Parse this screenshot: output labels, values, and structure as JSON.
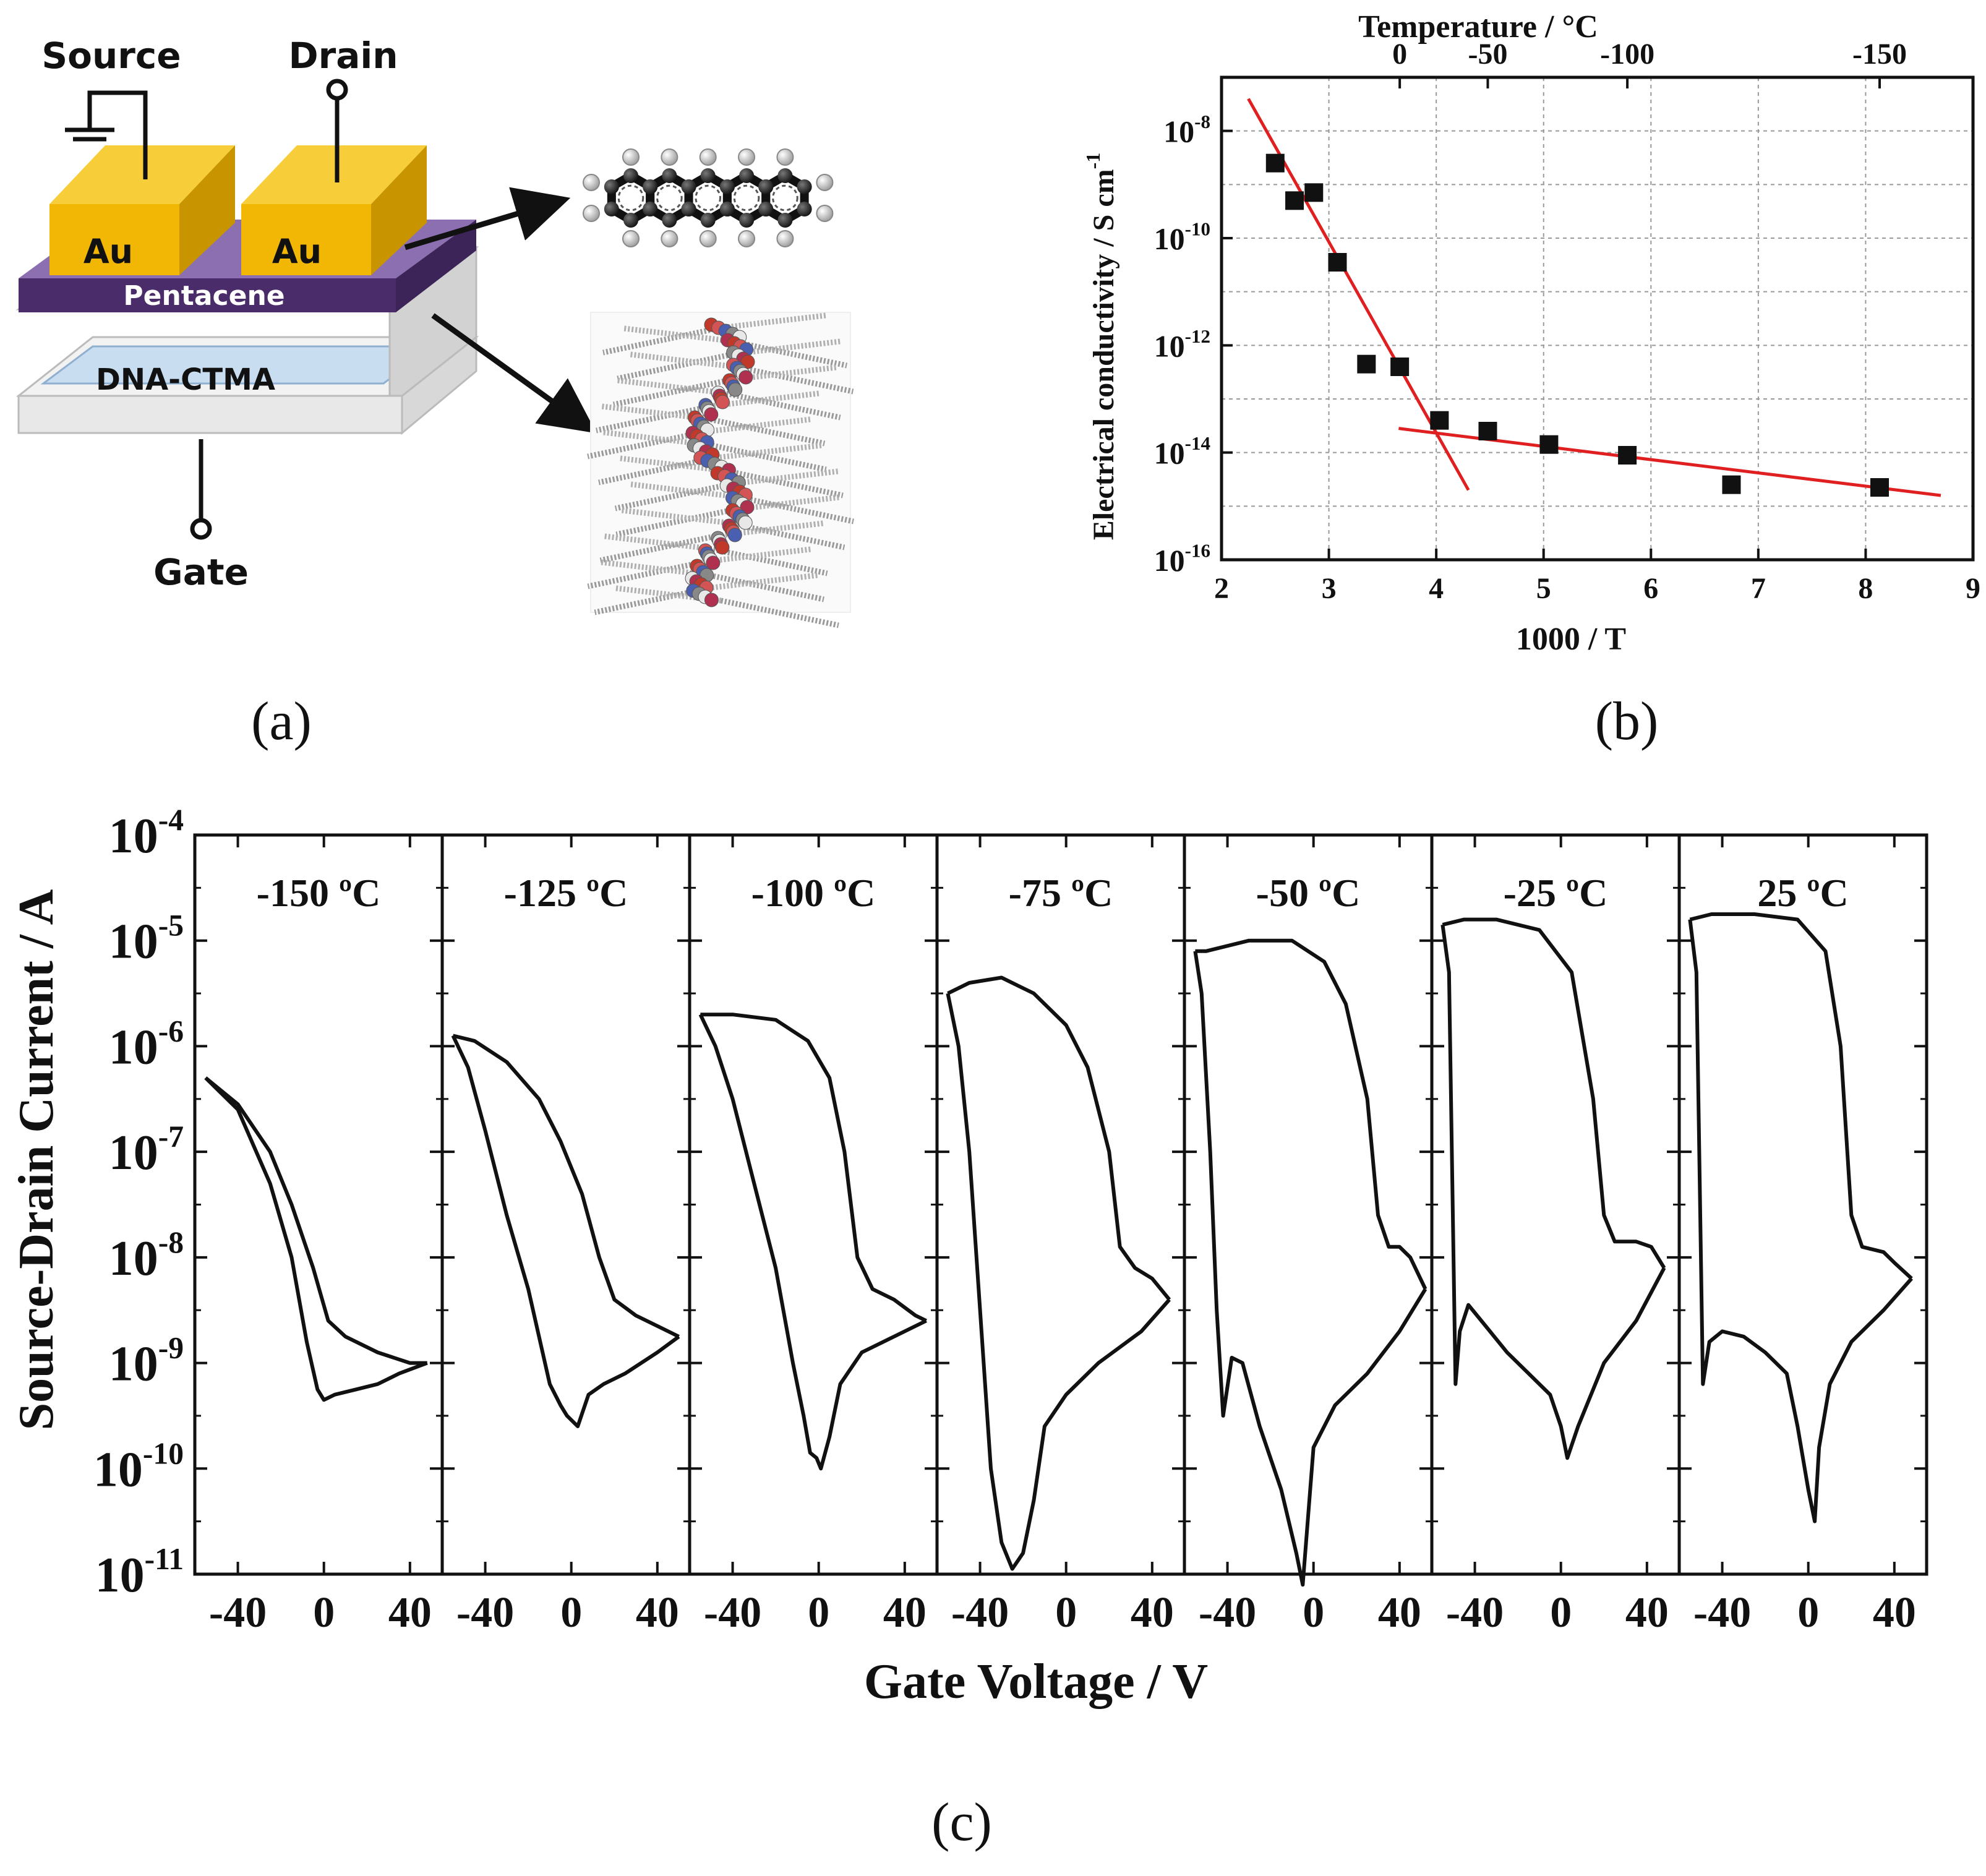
{
  "panel_a": {
    "caption": "(a)",
    "labels": {
      "source": "Source",
      "drain": "Drain",
      "gate": "Gate",
      "au_left": "Au",
      "au_right": "Au",
      "pentacene": "Pentacene",
      "dna": "DNA-CTMA"
    },
    "colors": {
      "gold": "#f2b705",
      "purple": "#5a3d7a",
      "dna_layer": "#c9ddf0",
      "substrate": "#e6e6e6"
    }
  },
  "chart_data": [
    {
      "id": "b",
      "type": "scatter",
      "caption": "(b)",
      "title": "",
      "xlabel": "1000 / T",
      "ylabel": "Electrical conductivity / S cm",
      "ylabel_sup": "-1",
      "xlabel_top": "Temperature / °C",
      "xlim": [
        2,
        9
      ],
      "ylog": true,
      "ylim_exp": [
        -16,
        -7
      ],
      "x_ticks": [
        "2",
        "3",
        "4",
        "5",
        "6",
        "7",
        "8",
        "9"
      ],
      "y_ticks": [
        {
          "exp": -8,
          "base": "10",
          "sup": "-8"
        },
        {
          "exp": -10,
          "base": "10",
          "sup": "-10"
        },
        {
          "exp": -12,
          "base": "10",
          "sup": "-12"
        },
        {
          "exp": -14,
          "base": "10",
          "sup": "-14"
        },
        {
          "exp": -16,
          "base": "10",
          "sup": "-16"
        }
      ],
      "top_ticks": [
        {
          "label": "0",
          "x": 3.66
        },
        {
          "label": "-50",
          "x": 4.48
        },
        {
          "label": "-100",
          "x": 5.78
        },
        {
          "label": "-150",
          "x": 8.13
        }
      ],
      "points": [
        {
          "x": 2.5,
          "y": -8.6
        },
        {
          "x": 2.68,
          "y": -9.3
        },
        {
          "x": 2.86,
          "y": -9.15
        },
        {
          "x": 3.08,
          "y": -10.45
        },
        {
          "x": 3.35,
          "y": -12.35
        },
        {
          "x": 3.66,
          "y": -12.4
        },
        {
          "x": 4.03,
          "y": -13.4
        },
        {
          "x": 4.48,
          "y": -13.6
        },
        {
          "x": 5.05,
          "y": -13.85
        },
        {
          "x": 5.78,
          "y": -14.05
        },
        {
          "x": 6.75,
          "y": -14.6
        },
        {
          "x": 8.13,
          "y": -14.65
        }
      ],
      "fit_lines": [
        {
          "x": [
            2.25,
            4.3
          ],
          "y": [
            -7.4,
            -14.7
          ],
          "color": "#e02020"
        },
        {
          "x": [
            3.65,
            8.7
          ],
          "y": [
            -13.55,
            -14.8
          ],
          "color": "#e02020"
        }
      ]
    },
    {
      "id": "c",
      "type": "line",
      "caption": "(c)",
      "xlabel": "Gate Voltage / V",
      "ylabel": "Source-Drain Current / A",
      "xlim": [
        -60,
        55
      ],
      "ylog": true,
      "ylim_exp": [
        -11,
        -4
      ],
      "x_ticks": [
        "-40",
        "0",
        "40"
      ],
      "x_tick_values": [
        -40,
        0,
        40
      ],
      "y_ticks": [
        {
          "exp": -4,
          "base": "10",
          "sup": "-4"
        },
        {
          "exp": -5,
          "base": "10",
          "sup": "-5"
        },
        {
          "exp": -6,
          "base": "10",
          "sup": "-6"
        },
        {
          "exp": -7,
          "base": "10",
          "sup": "-7"
        },
        {
          "exp": -8,
          "base": "10",
          "sup": "-8"
        },
        {
          "exp": -9,
          "base": "10",
          "sup": "-9"
        },
        {
          "exp": -10,
          "base": "10",
          "sup": "-10"
        },
        {
          "exp": -11,
          "base": "10",
          "sup": "-11"
        }
      ],
      "series": [
        {
          "name": "-150 ºC",
          "forward": [
            [
              -55,
              -6.3
            ],
            [
              -40,
              -6.6
            ],
            [
              -25,
              -7.3
            ],
            [
              -15,
              -8.0
            ],
            [
              -8,
              -8.8
            ],
            [
              -3,
              -9.25
            ],
            [
              0,
              -9.35
            ],
            [
              5,
              -9.3
            ],
            [
              15,
              -9.25
            ],
            [
              25,
              -9.2
            ],
            [
              35,
              -9.1
            ],
            [
              48,
              -9.0
            ]
          ],
          "backward": [
            [
              48,
              -9.0
            ],
            [
              40,
              -9.0
            ],
            [
              25,
              -8.9
            ],
            [
              10,
              -8.75
            ],
            [
              2,
              -8.6
            ],
            [
              -5,
              -8.1
            ],
            [
              -15,
              -7.5
            ],
            [
              -25,
              -7.0
            ],
            [
              -40,
              -6.55
            ],
            [
              -55,
              -6.3
            ]
          ]
        },
        {
          "name": "-125 ºC",
          "forward": [
            [
              -55,
              -5.9
            ],
            [
              -48,
              -6.2
            ],
            [
              -40,
              -6.8
            ],
            [
              -30,
              -7.6
            ],
            [
              -20,
              -8.3
            ],
            [
              -10,
              -9.2
            ],
            [
              -5,
              -9.4
            ],
            [
              -2,
              -9.5
            ],
            [
              3,
              -9.6
            ],
            [
              8,
              -9.3
            ],
            [
              15,
              -9.2
            ],
            [
              25,
              -9.1
            ],
            [
              40,
              -8.9
            ],
            [
              50,
              -8.75
            ]
          ],
          "backward": [
            [
              50,
              -8.75
            ],
            [
              40,
              -8.65
            ],
            [
              30,
              -8.55
            ],
            [
              20,
              -8.4
            ],
            [
              13,
              -8.0
            ],
            [
              5,
              -7.4
            ],
            [
              -5,
              -6.9
            ],
            [
              -15,
              -6.5
            ],
            [
              -30,
              -6.15
            ],
            [
              -45,
              -5.95
            ],
            [
              -55,
              -5.9
            ]
          ]
        },
        {
          "name": "-100 ºC",
          "forward": [
            [
              -55,
              -5.7
            ],
            [
              -48,
              -6.0
            ],
            [
              -40,
              -6.5
            ],
            [
              -30,
              -7.3
            ],
            [
              -20,
              -8.1
            ],
            [
              -12,
              -9.0
            ],
            [
              -7,
              -9.5
            ],
            [
              -4,
              -9.85
            ],
            [
              -1,
              -9.9
            ],
            [
              1,
              -10.0
            ],
            [
              5,
              -9.7
            ],
            [
              10,
              -9.2
            ],
            [
              20,
              -8.9
            ],
            [
              35,
              -8.75
            ],
            [
              50,
              -8.6
            ]
          ],
          "backward": [
            [
              50,
              -8.6
            ],
            [
              45,
              -8.55
            ],
            [
              35,
              -8.4
            ],
            [
              25,
              -8.3
            ],
            [
              18,
              -8.0
            ],
            [
              12,
              -7.0
            ],
            [
              5,
              -6.3
            ],
            [
              -5,
              -5.95
            ],
            [
              -20,
              -5.75
            ],
            [
              -40,
              -5.7
            ],
            [
              -55,
              -5.7
            ]
          ]
        },
        {
          "name": "-75 ºC",
          "forward": [
            [
              -55,
              -5.5
            ],
            [
              -50,
              -6.0
            ],
            [
              -45,
              -7.0
            ],
            [
              -40,
              -8.5
            ],
            [
              -35,
              -10.0
            ],
            [
              -30,
              -10.7
            ],
            [
              -25,
              -10.95
            ],
            [
              -20,
              -10.8
            ],
            [
              -15,
              -10.3
            ],
            [
              -10,
              -9.6
            ],
            [
              0,
              -9.3
            ],
            [
              15,
              -9.0
            ],
            [
              35,
              -8.7
            ],
            [
              48,
              -8.4
            ]
          ],
          "backward": [
            [
              48,
              -8.4
            ],
            [
              40,
              -8.2
            ],
            [
              32,
              -8.1
            ],
            [
              25,
              -7.9
            ],
            [
              20,
              -7.0
            ],
            [
              10,
              -6.2
            ],
            [
              0,
              -5.8
            ],
            [
              -15,
              -5.5
            ],
            [
              -30,
              -5.35
            ],
            [
              -45,
              -5.4
            ],
            [
              -55,
              -5.5
            ]
          ]
        },
        {
          "name": "-50 ºC",
          "forward": [
            [
              -55,
              -5.1
            ],
            [
              -52,
              -5.5
            ],
            [
              -48,
              -7.0
            ],
            [
              -45,
              -8.5
            ],
            [
              -42,
              -9.5
            ],
            [
              -38,
              -8.95
            ],
            [
              -33,
              -9.0
            ],
            [
              -25,
              -9.6
            ],
            [
              -15,
              -10.2
            ],
            [
              -8,
              -10.8
            ],
            [
              -5,
              -11.1
            ],
            [
              0,
              -9.8
            ],
            [
              10,
              -9.4
            ],
            [
              25,
              -9.1
            ],
            [
              40,
              -8.7
            ],
            [
              52,
              -8.3
            ]
          ],
          "backward": [
            [
              52,
              -8.3
            ],
            [
              45,
              -8.0
            ],
            [
              40,
              -7.9
            ],
            [
              35,
              -7.9
            ],
            [
              30,
              -7.6
            ],
            [
              25,
              -6.5
            ],
            [
              15,
              -5.6
            ],
            [
              5,
              -5.2
            ],
            [
              -10,
              -5.0
            ],
            [
              -30,
              -5.0
            ],
            [
              -50,
              -5.1
            ],
            [
              -55,
              -5.1
            ]
          ]
        },
        {
          "name": "-25 ºC",
          "forward": [
            [
              -55,
              -4.85
            ],
            [
              -52,
              -5.3
            ],
            [
              -49,
              -9.2
            ],
            [
              -47,
              -8.7
            ],
            [
              -43,
              -8.45
            ],
            [
              -35,
              -8.65
            ],
            [
              -25,
              -8.9
            ],
            [
              -15,
              -9.1
            ],
            [
              -5,
              -9.3
            ],
            [
              0,
              -9.6
            ],
            [
              3,
              -9.9
            ],
            [
              8,
              -9.6
            ],
            [
              20,
              -9.0
            ],
            [
              35,
              -8.6
            ],
            [
              48,
              -8.1
            ]
          ],
          "backward": [
            [
              48,
              -8.1
            ],
            [
              42,
              -7.9
            ],
            [
              35,
              -7.85
            ],
            [
              25,
              -7.85
            ],
            [
              20,
              -7.6
            ],
            [
              15,
              -6.5
            ],
            [
              5,
              -5.3
            ],
            [
              -10,
              -4.9
            ],
            [
              -30,
              -4.8
            ],
            [
              -45,
              -4.8
            ],
            [
              -55,
              -4.85
            ]
          ]
        },
        {
          "name": "25 ºC",
          "forward": [
            [
              -55,
              -4.8
            ],
            [
              -52,
              -5.3
            ],
            [
              -49,
              -9.2
            ],
            [
              -46,
              -8.8
            ],
            [
              -40,
              -8.7
            ],
            [
              -30,
              -8.75
            ],
            [
              -20,
              -8.9
            ],
            [
              -10,
              -9.1
            ],
            [
              -5,
              -9.6
            ],
            [
              0,
              -10.2
            ],
            [
              3,
              -10.5
            ],
            [
              5,
              -9.8
            ],
            [
              10,
              -9.2
            ],
            [
              20,
              -8.8
            ],
            [
              35,
              -8.5
            ],
            [
              48,
              -8.2
            ]
          ],
          "backward": [
            [
              48,
              -8.2
            ],
            [
              40,
              -8.05
            ],
            [
              35,
              -7.95
            ],
            [
              25,
              -7.9
            ],
            [
              20,
              -7.6
            ],
            [
              15,
              -6.0
            ],
            [
              8,
              -5.1
            ],
            [
              -5,
              -4.8
            ],
            [
              -25,
              -4.75
            ],
            [
              -45,
              -4.75
            ],
            [
              -55,
              -4.8
            ]
          ]
        }
      ]
    }
  ]
}
